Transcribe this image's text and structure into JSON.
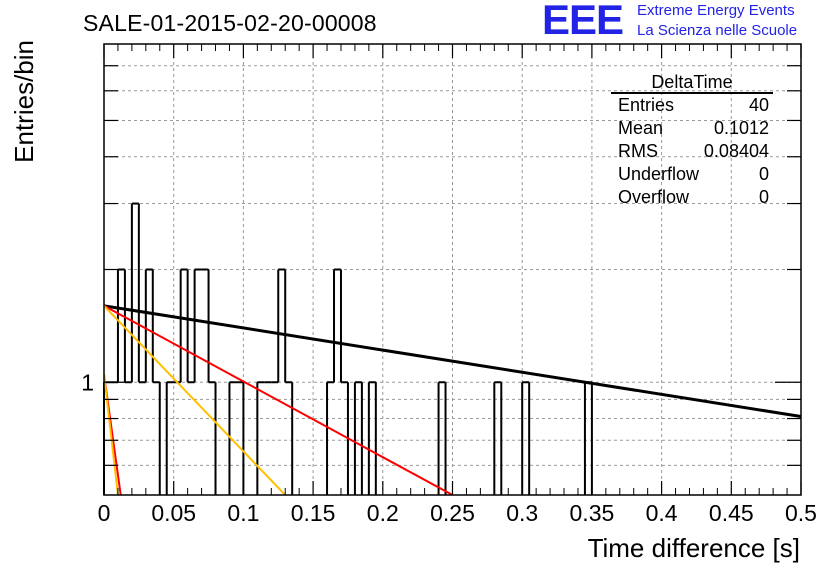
{
  "title": "SALE-01-2015-02-20-00008",
  "logo": {
    "mark": "EEE",
    "line1": "Extreme Energy Events",
    "line2": "La Scienza nelle Scuole",
    "color": "#2323e6"
  },
  "stats_box": {
    "title": "DeltaTime",
    "rows": [
      {
        "label": "Entries",
        "value": "40"
      },
      {
        "label": "Mean",
        "value": "0.1012"
      },
      {
        "label": "RMS",
        "value": "0.08404"
      },
      {
        "label": "Underflow",
        "value": "0"
      },
      {
        "label": "Overflow",
        "value": "0"
      }
    ]
  },
  "chart_data": {
    "type": "histogram",
    "xlabel": "Time difference [s]",
    "ylabel": "Entries/bin",
    "xlim": [
      0,
      0.5
    ],
    "ylim": [
      0.5,
      8
    ],
    "yscale": "log",
    "grid": true,
    "x_ticks": [
      "0",
      "0.05",
      "0.1",
      "0.15",
      "0.2",
      "0.25",
      "0.3",
      "0.35",
      "0.4",
      "0.45",
      "0.5"
    ],
    "y_tick_labels": [
      {
        "value": 1,
        "label": "1"
      }
    ],
    "bin_width": 0.005,
    "bins": [
      {
        "x0": 0.0,
        "count": 1
      },
      {
        "x0": 0.005,
        "count": 1
      },
      {
        "x0": 0.01,
        "count": 2
      },
      {
        "x0": 0.015,
        "count": 1
      },
      {
        "x0": 0.02,
        "count": 3
      },
      {
        "x0": 0.025,
        "count": 1
      },
      {
        "x0": 0.03,
        "count": 2
      },
      {
        "x0": 0.035,
        "count": 1
      },
      {
        "x0": 0.045,
        "count": 1
      },
      {
        "x0": 0.05,
        "count": 1
      },
      {
        "x0": 0.055,
        "count": 2
      },
      {
        "x0": 0.06,
        "count": 1
      },
      {
        "x0": 0.065,
        "count": 2
      },
      {
        "x0": 0.07,
        "count": 2
      },
      {
        "x0": 0.075,
        "count": 1
      },
      {
        "x0": 0.09,
        "count": 1
      },
      {
        "x0": 0.095,
        "count": 1
      },
      {
        "x0": 0.11,
        "count": 1
      },
      {
        "x0": 0.115,
        "count": 1
      },
      {
        "x0": 0.12,
        "count": 1
      },
      {
        "x0": 0.125,
        "count": 2
      },
      {
        "x0": 0.13,
        "count": 1
      },
      {
        "x0": 0.16,
        "count": 1
      },
      {
        "x0": 0.165,
        "count": 2
      },
      {
        "x0": 0.17,
        "count": 1
      },
      {
        "x0": 0.18,
        "count": 1
      },
      {
        "x0": 0.19,
        "count": 1
      },
      {
        "x0": 0.24,
        "count": 1
      },
      {
        "x0": 0.28,
        "count": 1
      },
      {
        "x0": 0.3,
        "count": 1
      },
      {
        "x0": 0.345,
        "count": 1
      }
    ],
    "series": [
      {
        "color": "#000000",
        "points": [
          [
            0.0,
            1.6
          ],
          [
            0.5,
            0.81
          ]
        ]
      },
      {
        "color": "#ff0000",
        "points": [
          [
            0.0,
            1.6
          ],
          [
            0.25,
            0.5
          ]
        ]
      },
      {
        "color": "#ffc000",
        "points": [
          [
            0.0,
            1.6
          ],
          [
            0.13,
            0.5
          ]
        ]
      },
      {
        "color": "#ff0000",
        "points": [
          [
            0.0,
            1.05
          ],
          [
            0.012,
            0.5
          ]
        ]
      },
      {
        "color": "#ffc000",
        "points": [
          [
            0.0,
            1.05
          ],
          [
            0.01,
            0.5
          ]
        ]
      }
    ]
  }
}
